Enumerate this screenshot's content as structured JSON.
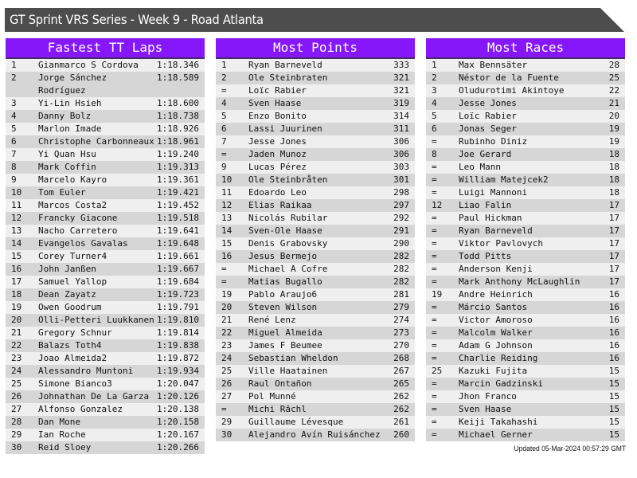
{
  "title": "GT Sprint VRS Series - Week 9 - Road Atlanta",
  "colors": {
    "header_bg": "#8617fb",
    "title_bg": "#4d4d4d",
    "row_odd": "#efefef",
    "row_even": "#d6d6d6"
  },
  "panels": [
    {
      "title": "Fastest TT Laps",
      "rows": [
        [
          "1",
          "Gianmarco S Cordova",
          "1:18.346"
        ],
        [
          "2",
          "Jorge Sánchez Rodríguez",
          "1:18.589"
        ],
        [
          "3",
          "Yi-Lin Hsieh",
          "1:18.600"
        ],
        [
          "4",
          "Danny Bolz",
          "1:18.738"
        ],
        [
          "5",
          "Marlon Imade",
          "1:18.926"
        ],
        [
          "6",
          "Christophe Carbonneaux",
          "1:18.961"
        ],
        [
          "7",
          "Yi Quan Hsu",
          "1:19.240"
        ],
        [
          "8",
          "Mark Coffin",
          "1:19.313"
        ],
        [
          "9",
          "Marcelo Kayro",
          "1:19.361"
        ],
        [
          "10",
          "Tom Euler",
          "1:19.421"
        ],
        [
          "11",
          "Marcos Costa2",
          "1:19.452"
        ],
        [
          "12",
          "Francky Giacone",
          "1:19.518"
        ],
        [
          "13",
          "Nacho Carretero",
          "1:19.641"
        ],
        [
          "14",
          "Evangelos Gavalas",
          "1:19.648"
        ],
        [
          "15",
          "Corey Turner4",
          "1:19.661"
        ],
        [
          "16",
          "John Janßen",
          "1:19.667"
        ],
        [
          "17",
          "Samuel Yallop",
          "1:19.684"
        ],
        [
          "18",
          "Dean Zayatz",
          "1:19.723"
        ],
        [
          "19",
          "Owen Goodrum",
          "1:19.791"
        ],
        [
          "20",
          "Olli-Petteri Luukkanen",
          "1:19.810"
        ],
        [
          "21",
          "Gregory Schnur",
          "1:19.814"
        ],
        [
          "22",
          "Balazs Toth4",
          "1:19.838"
        ],
        [
          "23",
          "Joao Almeida2",
          "1:19.872"
        ],
        [
          "24",
          "Alessandro Muntoni",
          "1:19.934"
        ],
        [
          "25",
          "Simone Bianco3",
          "1:20.047"
        ],
        [
          "26",
          "Johnathan De La Garza",
          "1:20.126"
        ],
        [
          "27",
          "Alfonso Gonzalez",
          "1:20.138"
        ],
        [
          "28",
          "Dan Mone",
          "1:20.158"
        ],
        [
          "29",
          "Ian Roche",
          "1:20.167"
        ],
        [
          "30",
          "Reid Sloey",
          "1:20.266"
        ]
      ]
    },
    {
      "title": "Most Points",
      "rows": [
        [
          "1",
          "Ryan Barneveld",
          "333"
        ],
        [
          "2",
          "Ole Steinbraten",
          "321"
        ],
        [
          "=",
          "Loïc Rabier",
          "321"
        ],
        [
          "4",
          "Sven Haase",
          "319"
        ],
        [
          "5",
          "Enzo Bonito",
          "314"
        ],
        [
          "6",
          "Lassi Juurinen",
          "311"
        ],
        [
          "7",
          "Jesse Jones",
          "306"
        ],
        [
          "=",
          "Jaden Munoz",
          "306"
        ],
        [
          "9",
          "Lucas Pérez",
          "303"
        ],
        [
          "10",
          "Ole Steinbråten",
          "301"
        ],
        [
          "11",
          "Edoardo Leo",
          "298"
        ],
        [
          "12",
          "Elias Raikaa",
          "297"
        ],
        [
          "13",
          "Nicolás Rubilar",
          "292"
        ],
        [
          "14",
          "Sven-Ole Haase",
          "291"
        ],
        [
          "15",
          "Denis Grabovsky",
          "290"
        ],
        [
          "16",
          "Jesus Bermejo",
          "282"
        ],
        [
          "=",
          "Michael A Cofre",
          "282"
        ],
        [
          "=",
          "Matias Bugallo",
          "282"
        ],
        [
          "19",
          "Pablo Araujo6",
          "281"
        ],
        [
          "20",
          "Steven Wilson",
          "279"
        ],
        [
          "21",
          "René Lenz",
          "274"
        ],
        [
          "22",
          "Miguel Almeida",
          "273"
        ],
        [
          "23",
          "James F Beumee",
          "270"
        ],
        [
          "24",
          "Sebastian Wheldon",
          "268"
        ],
        [
          "25",
          "Ville Haatainen",
          "267"
        ],
        [
          "26",
          "Raul Ontañon",
          "265"
        ],
        [
          "27",
          "Pol Munné",
          "262"
        ],
        [
          "=",
          "Michi Rächl",
          "262"
        ],
        [
          "29",
          "Guillaume Lévesque",
          "261"
        ],
        [
          "30",
          "Alejandro Avín Ruisánchez",
          "260"
        ]
      ]
    },
    {
      "title": "Most Races",
      "rows": [
        [
          "1",
          "Max Bennsäter",
          "28"
        ],
        [
          "2",
          "Néstor de la Fuente",
          "25"
        ],
        [
          "3",
          "Oludurotimi Akintoye",
          "22"
        ],
        [
          "4",
          "Jesse Jones",
          "21"
        ],
        [
          "5",
          "Loïc Rabier",
          "20"
        ],
        [
          "6",
          "Jonas Seger",
          "19"
        ],
        [
          "=",
          "Rubinho Diniz",
          "19"
        ],
        [
          "8",
          "Joe Gerard",
          "18"
        ],
        [
          "=",
          "Leo Mann",
          "18"
        ],
        [
          "=",
          "William Matejcek2",
          "18"
        ],
        [
          "=",
          "Luigi Mannoni",
          "18"
        ],
        [
          "12",
          "Liao Falin",
          "17"
        ],
        [
          "=",
          "Paul Hickman",
          "17"
        ],
        [
          "=",
          "Ryan Barneveld",
          "17"
        ],
        [
          "=",
          "Viktor Pavlovych",
          "17"
        ],
        [
          "=",
          "Todd Pitts",
          "17"
        ],
        [
          "=",
          "Anderson Kenji",
          "17"
        ],
        [
          "=",
          "Mark Anthony McLaughlin",
          "17"
        ],
        [
          "19",
          "Andre Heinrich",
          "16"
        ],
        [
          "=",
          "Márcio Santos",
          "16"
        ],
        [
          "=",
          "Victor Amoroso",
          "16"
        ],
        [
          "=",
          "Malcolm Walker",
          "16"
        ],
        [
          "=",
          "Adam G Johnson",
          "16"
        ],
        [
          "=",
          "Charlie Reiding",
          "16"
        ],
        [
          "25",
          "Kazuki Fujita",
          "15"
        ],
        [
          "=",
          "Marcin Gadzinski",
          "15"
        ],
        [
          "=",
          "Jhon Franco",
          "15"
        ],
        [
          "=",
          "Sven Haase",
          "15"
        ],
        [
          "=",
          "Keiji Takahashi",
          "15"
        ],
        [
          "=",
          "Michael Gerner",
          "15"
        ]
      ]
    }
  ],
  "footer": "Updated 05-Mar-2024 00:57:29 GMT"
}
